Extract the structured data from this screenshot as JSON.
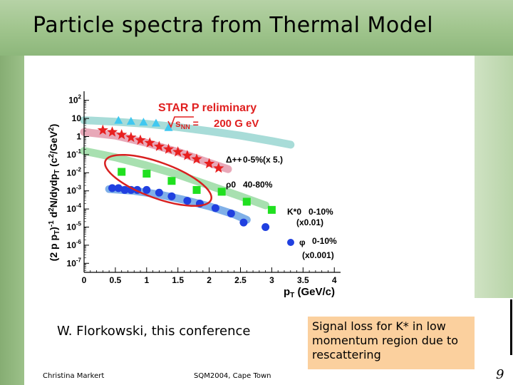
{
  "slide": {
    "title": "Particle spectra from Thermal Model",
    "caption": "W. Florkowski, this conference",
    "note": "Signal loss for K* in low momentum region due to rescattering",
    "footer_left": "Christina Markert",
    "footer_center": "SQM2004, Cape Town",
    "page_number": "9"
  },
  "chart_data": {
    "type": "scatter",
    "x_ticks": [
      "0",
      "0.5",
      "1",
      "1.5",
      "2",
      "2.5",
      "3",
      "3.5",
      "4"
    ],
    "y_ticks": [
      "10^2",
      "10",
      "1",
      "10^-1",
      "10^-2",
      "10^-3",
      "10^-4",
      "10^-5",
      "10^-6",
      "10^-7"
    ],
    "xlim": [
      0,
      4.1
    ],
    "ylim_log10": [
      -7.5,
      2.5
    ],
    "banner_top": "STAR P reliminary",
    "banner_energy": "200 G eV",
    "legend": [
      {
        "particle": "Δ++",
        "label": "0-5%(x 5.)"
      },
      {
        "particle": "ρ0",
        "label": "40-80%"
      },
      {
        "particle": "K*0",
        "label": "0-10%",
        "scale": "(x0.01)"
      },
      {
        "particle": "φ",
        "label": "0-10%",
        "scale": "(x0.001)"
      }
    ],
    "series": [
      {
        "name": "Δ++",
        "marker": "triangle",
        "color": "#40c8f0",
        "band_color": "#a8dcd8",
        "x": [
          0.55,
          0.75,
          0.95,
          1.15,
          1.35
        ],
        "y": [
          0.9,
          0.85,
          0.8,
          0.75,
          0.5
        ],
        "band_x": [
          0.0,
          0.5,
          1.0,
          1.5,
          2.0,
          2.5,
          3.0,
          3.3
        ],
        "band_y": [
          0.9,
          0.82,
          0.7,
          0.52,
          0.3,
          0.05,
          -0.25,
          -0.45
        ]
      },
      {
        "name": "ρ0",
        "marker": "star",
        "color": "#e82020",
        "band_color": "#e8a8b8",
        "x": [
          0.3,
          0.45,
          0.6,
          0.75,
          0.9,
          1.05,
          1.2,
          1.35,
          1.5,
          1.65,
          1.8,
          2.0,
          2.15
        ],
        "y": [
          0.35,
          0.25,
          0.1,
          -0.05,
          -0.2,
          -0.35,
          -0.55,
          -0.7,
          -0.85,
          -1.05,
          -1.25,
          -1.5,
          -1.75
        ],
        "band_x": [
          0.0,
          0.5,
          1.0,
          1.5,
          2.0,
          2.3
        ],
        "band_y": [
          0.25,
          0.05,
          -0.35,
          -0.85,
          -1.45,
          -1.8
        ]
      },
      {
        "name": "K*0",
        "marker": "square",
        "color": "#20e020",
        "band_color": "#a8e0b0",
        "x": [
          0.6,
          1.0,
          1.4,
          1.8,
          2.2,
          2.6,
          3.0
        ],
        "y": [
          -1.95,
          -2.05,
          -2.45,
          -2.95,
          -3.05,
          -3.6,
          -4.05
        ],
        "band_x": [
          0.0,
          0.5,
          1.0,
          1.5,
          2.0,
          2.5,
          2.9
        ],
        "band_y": [
          -0.8,
          -1.15,
          -1.6,
          -2.1,
          -2.7,
          -3.3,
          -3.8
        ]
      },
      {
        "name": "φ",
        "marker": "circle",
        "color": "#2040e0",
        "band_color": "#80b0e8",
        "x": [
          0.45,
          0.55,
          0.65,
          0.75,
          0.85,
          1.0,
          1.2,
          1.4,
          1.65,
          1.85,
          2.1,
          2.35,
          2.55,
          2.9
        ],
        "y": [
          -2.85,
          -2.85,
          -2.95,
          -2.95,
          -2.95,
          -2.95,
          -3.1,
          -3.3,
          -3.55,
          -3.7,
          -3.95,
          -4.25,
          -4.75,
          -5.0
        ],
        "band_x": [
          0.4,
          0.8,
          1.2,
          1.6,
          2.0,
          2.4,
          2.6
        ],
        "band_y": [
          -2.9,
          -3.0,
          -3.2,
          -3.5,
          -3.85,
          -4.3,
          -4.6
        ]
      }
    ]
  }
}
